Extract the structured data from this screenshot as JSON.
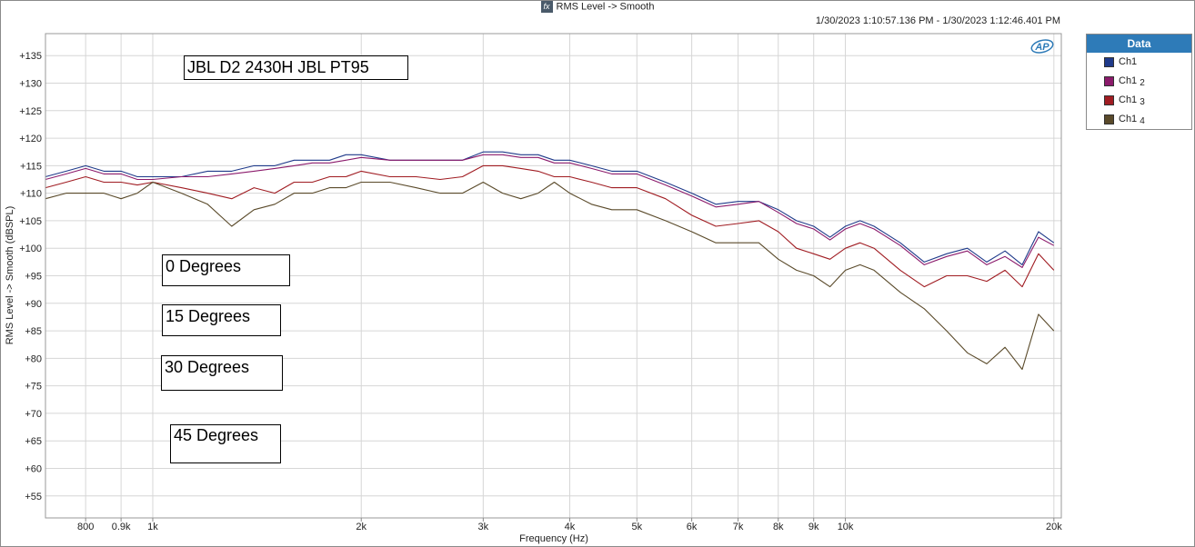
{
  "window": {
    "fx_label": "fx",
    "title": "RMS Level -> Smooth",
    "timestamp_range": "1/30/2023 1:10:57.136 PM - 1/30/2023 1:12:46.401 PM"
  },
  "logo_text": "AP",
  "legend": {
    "title": "Data",
    "items": [
      {
        "label": "Ch1",
        "sub": "",
        "color": "#1f3a8a"
      },
      {
        "label": "Ch1",
        "sub": "2",
        "color": "#8b1a6b"
      },
      {
        "label": "Ch1",
        "sub": "3",
        "color": "#a01c22"
      },
      {
        "label": "Ch1",
        "sub": "4",
        "color": "#5a4a2a"
      }
    ]
  },
  "annotations": {
    "main": "JBL D2 2430H JBL PT95",
    "a0": "0 Degrees",
    "a15": "15 Degrees",
    "a30": "30 Degrees",
    "a45": "45 Degrees"
  },
  "chart_data": {
    "type": "line",
    "xlabel": "Frequency (Hz)",
    "ylabel": "RMS Level -> Smooth (dBSPL)",
    "x_scale": "log",
    "xlim": [
      700,
      20500
    ],
    "ylim": [
      51,
      139
    ],
    "x_ticks": [
      {
        "v": 800,
        "label": "800"
      },
      {
        "v": 900,
        "label": "0.9k"
      },
      {
        "v": 1000,
        "label": "1k"
      },
      {
        "v": 2000,
        "label": "2k"
      },
      {
        "v": 3000,
        "label": "3k"
      },
      {
        "v": 4000,
        "label": "4k"
      },
      {
        "v": 5000,
        "label": "5k"
      },
      {
        "v": 6000,
        "label": "6k"
      },
      {
        "v": 7000,
        "label": "7k"
      },
      {
        "v": 8000,
        "label": "8k"
      },
      {
        "v": 9000,
        "label": "9k"
      },
      {
        "v": 10000,
        "label": "10k"
      },
      {
        "v": 20000,
        "label": "20k"
      }
    ],
    "y_ticks": [
      55,
      60,
      65,
      70,
      75,
      80,
      85,
      90,
      95,
      100,
      105,
      110,
      115,
      120,
      125,
      130,
      135
    ],
    "y_tick_labels": [
      "+55",
      "+60",
      "+65",
      "+70",
      "+75",
      "+80",
      "+85",
      "+90",
      "+95",
      "+100",
      "+105",
      "+110",
      "+115",
      "+120",
      "+125",
      "+130",
      "+135"
    ],
    "grid": true,
    "x": [
      700,
      750,
      800,
      850,
      900,
      950,
      1000,
      1100,
      1200,
      1300,
      1400,
      1500,
      1600,
      1700,
      1800,
      1900,
      2000,
      2200,
      2400,
      2600,
      2800,
      3000,
      3200,
      3400,
      3600,
      3800,
      4000,
      4300,
      4600,
      5000,
      5500,
      6000,
      6500,
      7000,
      7500,
      8000,
      8500,
      9000,
      9500,
      10000,
      10500,
      11000,
      12000,
      13000,
      14000,
      15000,
      16000,
      17000,
      18000,
      19000,
      20000
    ],
    "series": [
      {
        "name": "Ch1",
        "color": "#1f3a8a",
        "values": [
          113,
          114,
          115,
          114,
          114,
          113,
          113,
          113,
          114,
          114,
          115,
          115,
          116,
          116,
          116,
          117,
          117,
          116,
          116,
          116,
          116,
          117.5,
          117.5,
          117,
          117,
          116,
          116,
          115,
          114,
          114,
          112,
          110,
          108,
          108.5,
          108.5,
          107,
          105,
          104,
          102,
          104,
          105,
          104,
          101,
          97.5,
          99,
          100,
          97.5,
          99.5,
          97,
          103,
          101
        ]
      },
      {
        "name": "Ch1 2",
        "color": "#8b1a6b",
        "values": [
          112.5,
          113.5,
          114.5,
          113.5,
          113.5,
          112.5,
          112.5,
          113,
          113,
          113.5,
          114,
          114.5,
          115,
          115.5,
          115.5,
          116,
          116.5,
          116,
          116,
          116,
          116,
          117,
          117,
          116.5,
          116.5,
          115.5,
          115.5,
          114.5,
          113.5,
          113.5,
          111.5,
          109.5,
          107.5,
          108,
          108.5,
          106.5,
          104.5,
          103.5,
          101.5,
          103.5,
          104.5,
          103.5,
          100.5,
          97,
          98.5,
          99.5,
          97,
          98.5,
          96.5,
          102,
          100.5
        ]
      },
      {
        "name": "Ch1 3",
        "color": "#a01c22",
        "values": [
          111,
          112,
          113,
          112,
          112,
          111.5,
          112,
          111,
          110,
          109,
          111,
          110,
          112,
          112,
          113,
          113,
          114,
          113,
          113,
          112.5,
          113,
          115,
          115,
          114.5,
          114,
          113,
          113,
          112,
          111,
          111,
          109,
          106,
          104,
          104.5,
          105,
          103,
          100,
          99,
          98,
          100,
          101,
          100,
          96,
          93,
          95,
          95,
          94,
          96,
          93,
          99,
          96
        ]
      },
      {
        "name": "Ch1 4",
        "color": "#5a4a2a",
        "values": [
          109,
          110,
          110,
          110,
          109,
          110,
          112,
          110,
          108,
          104,
          107,
          108,
          110,
          110,
          111,
          111,
          112,
          112,
          111,
          110,
          110,
          112,
          110,
          109,
          110,
          112,
          110,
          108,
          107,
          107,
          105,
          103,
          101,
          101,
          101,
          98,
          96,
          95,
          93,
          96,
          97,
          96,
          92,
          89,
          85,
          81,
          79,
          82,
          78,
          88,
          85
        ]
      }
    ]
  }
}
